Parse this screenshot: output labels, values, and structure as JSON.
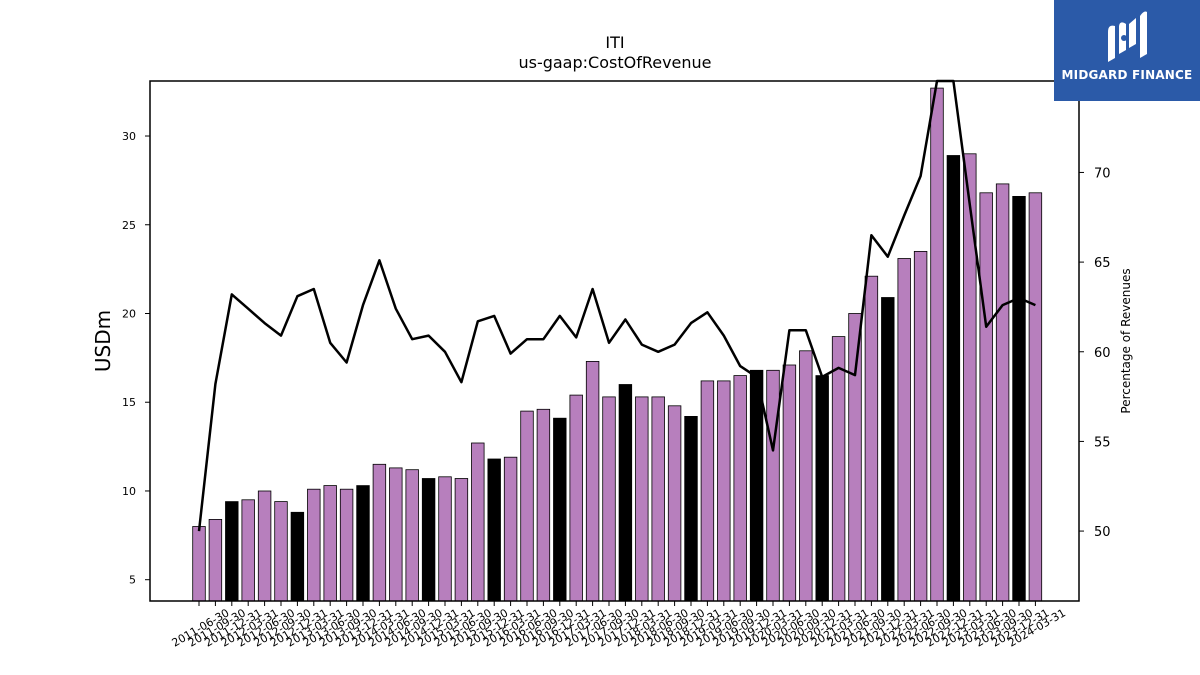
{
  "chart_data": {
    "type": "bar",
    "title": "ITI",
    "subtitle": "us-gaap:CostOfRevenue",
    "ylabel": "USDm",
    "y2label": "Percentage of Revenues",
    "ylim": [
      3.8,
      33.1
    ],
    "y2lim": [
      46.1,
      75.1
    ],
    "yticks": [
      5,
      10,
      15,
      20,
      25,
      30
    ],
    "y2ticks": [
      50,
      55,
      60,
      65,
      70
    ],
    "categories": [
      "2011-06-30",
      "2011-09-30",
      "2011-12-31",
      "2012-03-31",
      "2012-06-30",
      "2012-09-30",
      "2012-12-31",
      "2013-03-31",
      "2013-06-30",
      "2013-09-30",
      "2013-12-31",
      "2014-03-31",
      "2014-06-30",
      "2014-09-30",
      "2014-12-31",
      "2015-03-31",
      "2015-06-30",
      "2015-09-30",
      "2015-12-31",
      "2016-03-31",
      "2016-06-30",
      "2016-09-30",
      "2016-12-31",
      "2017-03-31",
      "2017-06-30",
      "2017-09-30",
      "2017-12-31",
      "2018-03-31",
      "2018-06-30",
      "2018-09-30",
      "2018-12-31",
      "2019-03-31",
      "2019-06-30",
      "2019-09-30",
      "2019-12-31",
      "2020-03-31",
      "2020-06-30",
      "2020-09-30",
      "2020-12-31",
      "2021-03-31",
      "2021-06-30",
      "2021-09-30",
      "2021-12-31",
      "2022-03-31",
      "2022-06-30",
      "2022-09-30",
      "2022-12-31",
      "2023-03-31",
      "2023-06-30",
      "2023-09-30",
      "2023-12-31",
      "2024-03-31"
    ],
    "series": [
      {
        "kind": "bar",
        "values": [
          8.0,
          8.4,
          9.4,
          9.5,
          10.0,
          9.4,
          8.8,
          10.1,
          10.3,
          10.1,
          10.3,
          11.5,
          11.3,
          11.2,
          10.7,
          10.8,
          10.7,
          12.7,
          11.8,
          11.9,
          14.5,
          14.6,
          14.1,
          15.4,
          17.3,
          15.3,
          16.0,
          15.3,
          15.3,
          14.8,
          14.2,
          16.2,
          16.2,
          16.5,
          16.8,
          16.8,
          17.1,
          17.9,
          16.5,
          18.7,
          20.0,
          22.1,
          20.9,
          23.1,
          23.5,
          32.7,
          28.9,
          29.0,
          26.8,
          27.3,
          26.6,
          26.8
        ]
      },
      {
        "kind": "line",
        "axis": "right",
        "values": [
          50.0,
          58.2,
          63.2,
          62.4,
          61.6,
          60.9,
          63.1,
          63.5,
          60.5,
          59.4,
          62.6,
          65.1,
          62.4,
          60.7,
          60.9,
          60.0,
          58.3,
          61.7,
          62.0,
          59.9,
          60.7,
          60.7,
          62.0,
          60.8,
          63.5,
          60.5,
          61.8,
          60.4,
          60.0,
          60.4,
          61.6,
          62.2,
          60.9,
          59.2,
          58.6,
          54.5,
          61.2,
          61.2,
          58.6,
          59.1,
          58.7,
          66.5,
          65.3,
          67.6,
          69.8,
          76.5,
          76.5,
          68.2,
          61.4,
          62.6,
          63.0,
          62.6
        ]
      }
    ],
    "bar_colors": {
      "regular": "#b77fbd",
      "fiscal_q4": "#000000"
    },
    "highlighted_categories": [
      "2011-12-31",
      "2012-12-31",
      "2013-12-31",
      "2014-12-31",
      "2015-12-31",
      "2016-12-31",
      "2017-12-31",
      "2018-12-31",
      "2019-12-31",
      "2020-12-31",
      "2021-12-31",
      "2022-12-31",
      "2023-12-31"
    ],
    "line_color": "#000000",
    "grid": false,
    "legend": "none"
  },
  "logo": {
    "text": "MIDGARD FINANCE",
    "color": "#2b5aa8"
  }
}
